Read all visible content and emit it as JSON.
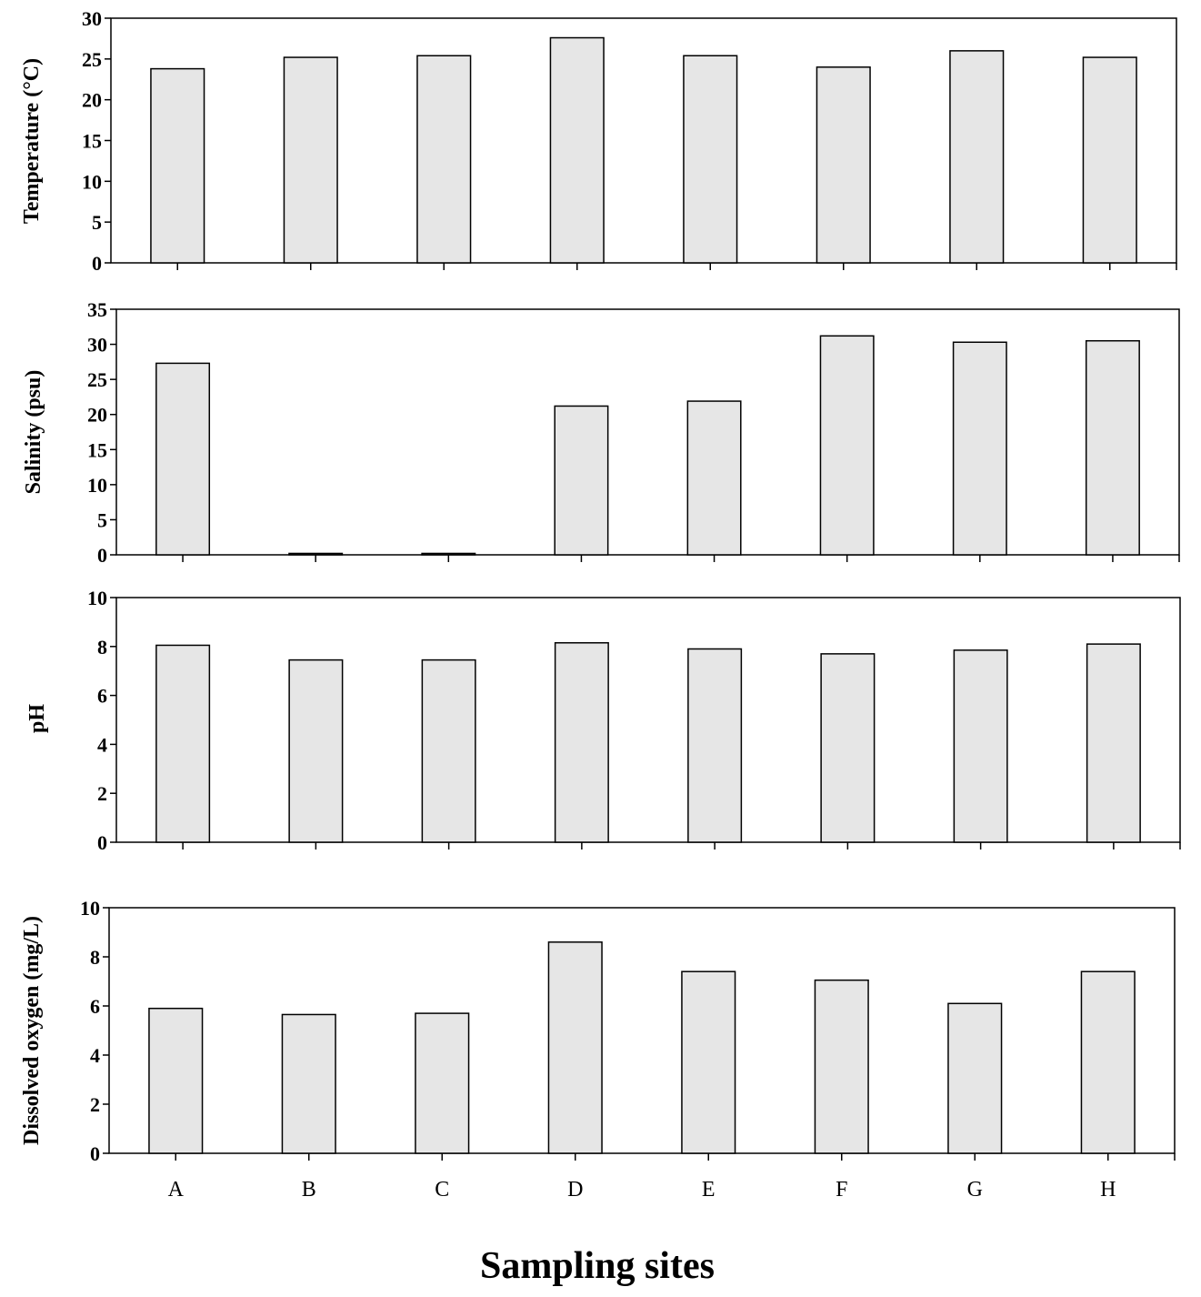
{
  "figure": {
    "xlabel": "Sampling sites",
    "categories": [
      "A",
      "B",
      "C",
      "D",
      "E",
      "F",
      "G",
      "H"
    ],
    "bar_color": "#e6e6e6",
    "edge_color": "#000000"
  },
  "chart_data": [
    {
      "type": "bar",
      "title": "",
      "ylabel": "Temperature (°C)",
      "xlabel": "",
      "categories": [
        "A",
        "B",
        "C",
        "D",
        "E",
        "F",
        "G",
        "H"
      ],
      "values": [
        23.8,
        25.2,
        25.4,
        27.6,
        25.4,
        24.0,
        26.0,
        25.2
      ],
      "ylim": [
        0,
        30
      ],
      "yticks": [
        0,
        5,
        10,
        15,
        20,
        25,
        30
      ],
      "show_category_labels": false,
      "grid": false
    },
    {
      "type": "bar",
      "title": "",
      "ylabel": "Salinity (psu)",
      "xlabel": "",
      "categories": [
        "A",
        "B",
        "C",
        "D",
        "E",
        "F",
        "G",
        "H"
      ],
      "values": [
        27.3,
        0.2,
        0.2,
        21.2,
        21.9,
        31.2,
        30.3,
        30.5
      ],
      "ylim": [
        0,
        35
      ],
      "yticks": [
        0,
        5,
        10,
        15,
        20,
        25,
        30,
        35
      ],
      "show_category_labels": false,
      "grid": false
    },
    {
      "type": "bar",
      "title": "",
      "ylabel": "pH",
      "xlabel": "",
      "categories": [
        "A",
        "B",
        "C",
        "D",
        "E",
        "F",
        "G",
        "H"
      ],
      "values": [
        8.05,
        7.45,
        7.45,
        8.15,
        7.9,
        7.7,
        7.85,
        8.1
      ],
      "ylim": [
        0,
        10
      ],
      "yticks": [
        0,
        2,
        4,
        6,
        8,
        10
      ],
      "show_category_labels": false,
      "grid": false
    },
    {
      "type": "bar",
      "title": "",
      "ylabel": "Dissolved oxygen (mg/L)",
      "xlabel": "Sampling sites",
      "categories": [
        "A",
        "B",
        "C",
        "D",
        "E",
        "F",
        "G",
        "H"
      ],
      "values": [
        5.9,
        5.65,
        5.7,
        8.6,
        7.4,
        7.05,
        6.1,
        7.4
      ],
      "ylim": [
        0,
        10
      ],
      "yticks": [
        0,
        2,
        4,
        6,
        8,
        10
      ],
      "show_category_labels": true,
      "grid": false
    }
  ]
}
